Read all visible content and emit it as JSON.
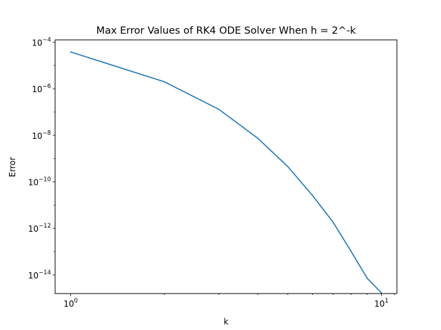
{
  "chart_data": {
    "type": "line",
    "title": "Max Error Values of RK4 ODE Solver When h = 2^-k",
    "xlabel": "k",
    "ylabel": "Error",
    "x_scale": "log",
    "y_scale": "log",
    "xlim": [
      0.891,
      11.22
    ],
    "ylim": [
      1.58e-15,
      0.000126
    ],
    "grid": false,
    "x_ticks": [
      {
        "value": 1,
        "base": "10",
        "exp": "0"
      },
      {
        "value": 10,
        "base": "10",
        "exp": "1"
      }
    ],
    "y_ticks": [
      {
        "value": 0.0001,
        "base": "10",
        "exp": "−4"
      },
      {
        "value": 1e-06,
        "base": "10",
        "exp": "−6"
      },
      {
        "value": 1e-08,
        "base": "10",
        "exp": "−8"
      },
      {
        "value": 1e-10,
        "base": "10",
        "exp": "−10"
      },
      {
        "value": 1e-12,
        "base": "10",
        "exp": "−12"
      },
      {
        "value": 1e-14,
        "base": "10",
        "exp": "−14"
      }
    ],
    "series": [
      {
        "color": "#1f77b4",
        "x": [
          1,
          2,
          3,
          4,
          5,
          6,
          7,
          8,
          9,
          10
        ],
        "y": [
          3.8e-05,
          2e-06,
          1.3e-07,
          7.5e-09,
          4.5e-10,
          2.6e-11,
          1.8e-12,
          1e-13,
          7.2e-15,
          1.7e-15
        ]
      }
    ]
  }
}
